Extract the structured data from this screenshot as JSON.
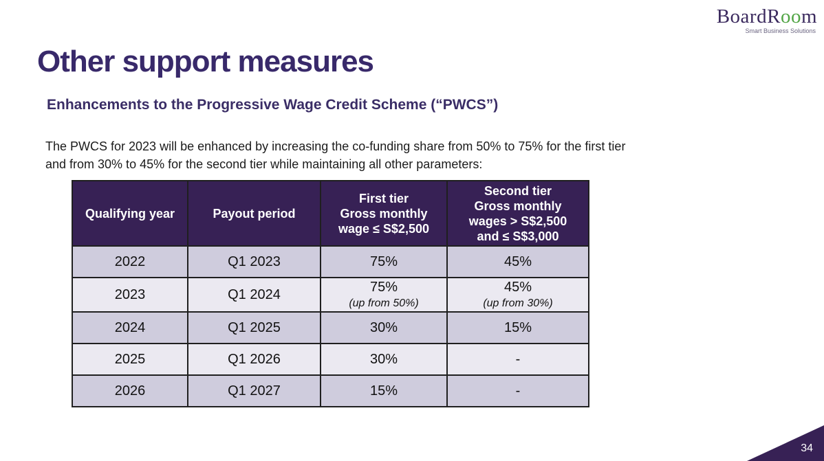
{
  "slide": {
    "title": "Other support measures",
    "page_number": "34"
  },
  "logo": {
    "wordmark_prefix": "BoardR",
    "wordmark_oo": "oo",
    "wordmark_suffix": "m",
    "tagline": "Smart Business Solutions"
  },
  "content": {
    "subtitle": "Enhancements to the Progressive Wage Credit Scheme (“PWCS”)",
    "paragraph": "The PWCS for 2023 will be enhanced by increasing the co-funding share from 50% to 75% for the first tier and from 30% to 45% for the second tier while maintaining all other parameters:"
  },
  "table": {
    "columns": [
      {
        "label": "Qualifying year"
      },
      {
        "label": "Payout period"
      },
      {
        "label": "First tier\nGross monthly\nwage ≤ S$2,500"
      },
      {
        "label": "Second tier\nGross monthly\nwages > S$2,500\nand ≤  S$3,000"
      }
    ],
    "rows": [
      [
        {
          "text": "2022"
        },
        {
          "text": "Q1 2023"
        },
        {
          "text": "75%"
        },
        {
          "text": "45%"
        }
      ],
      [
        {
          "text": "2023"
        },
        {
          "text": "Q1 2024"
        },
        {
          "text": "75%",
          "note": "(up from 50%)"
        },
        {
          "text": "45%",
          "note": "(up from 30%)"
        }
      ],
      [
        {
          "text": "2024"
        },
        {
          "text": "Q1 2025"
        },
        {
          "text": "30%"
        },
        {
          "text": "15%"
        }
      ],
      [
        {
          "text": "2025"
        },
        {
          "text": "Q1 2026"
        },
        {
          "text": "30%"
        },
        {
          "text": "-"
        }
      ],
      [
        {
          "text": "2026"
        },
        {
          "text": "Q1 2027"
        },
        {
          "text": "15%"
        },
        {
          "text": "-"
        }
      ]
    ]
  },
  "colors": {
    "title_text": "#38296a",
    "table_header_bg": "#372155",
    "row_odd_bg": "#cfccdd",
    "row_even_bg": "#ebe9f1",
    "logo_purple": "#3b2a5e",
    "logo_green": "#52a546",
    "corner_bg": "#372155"
  }
}
